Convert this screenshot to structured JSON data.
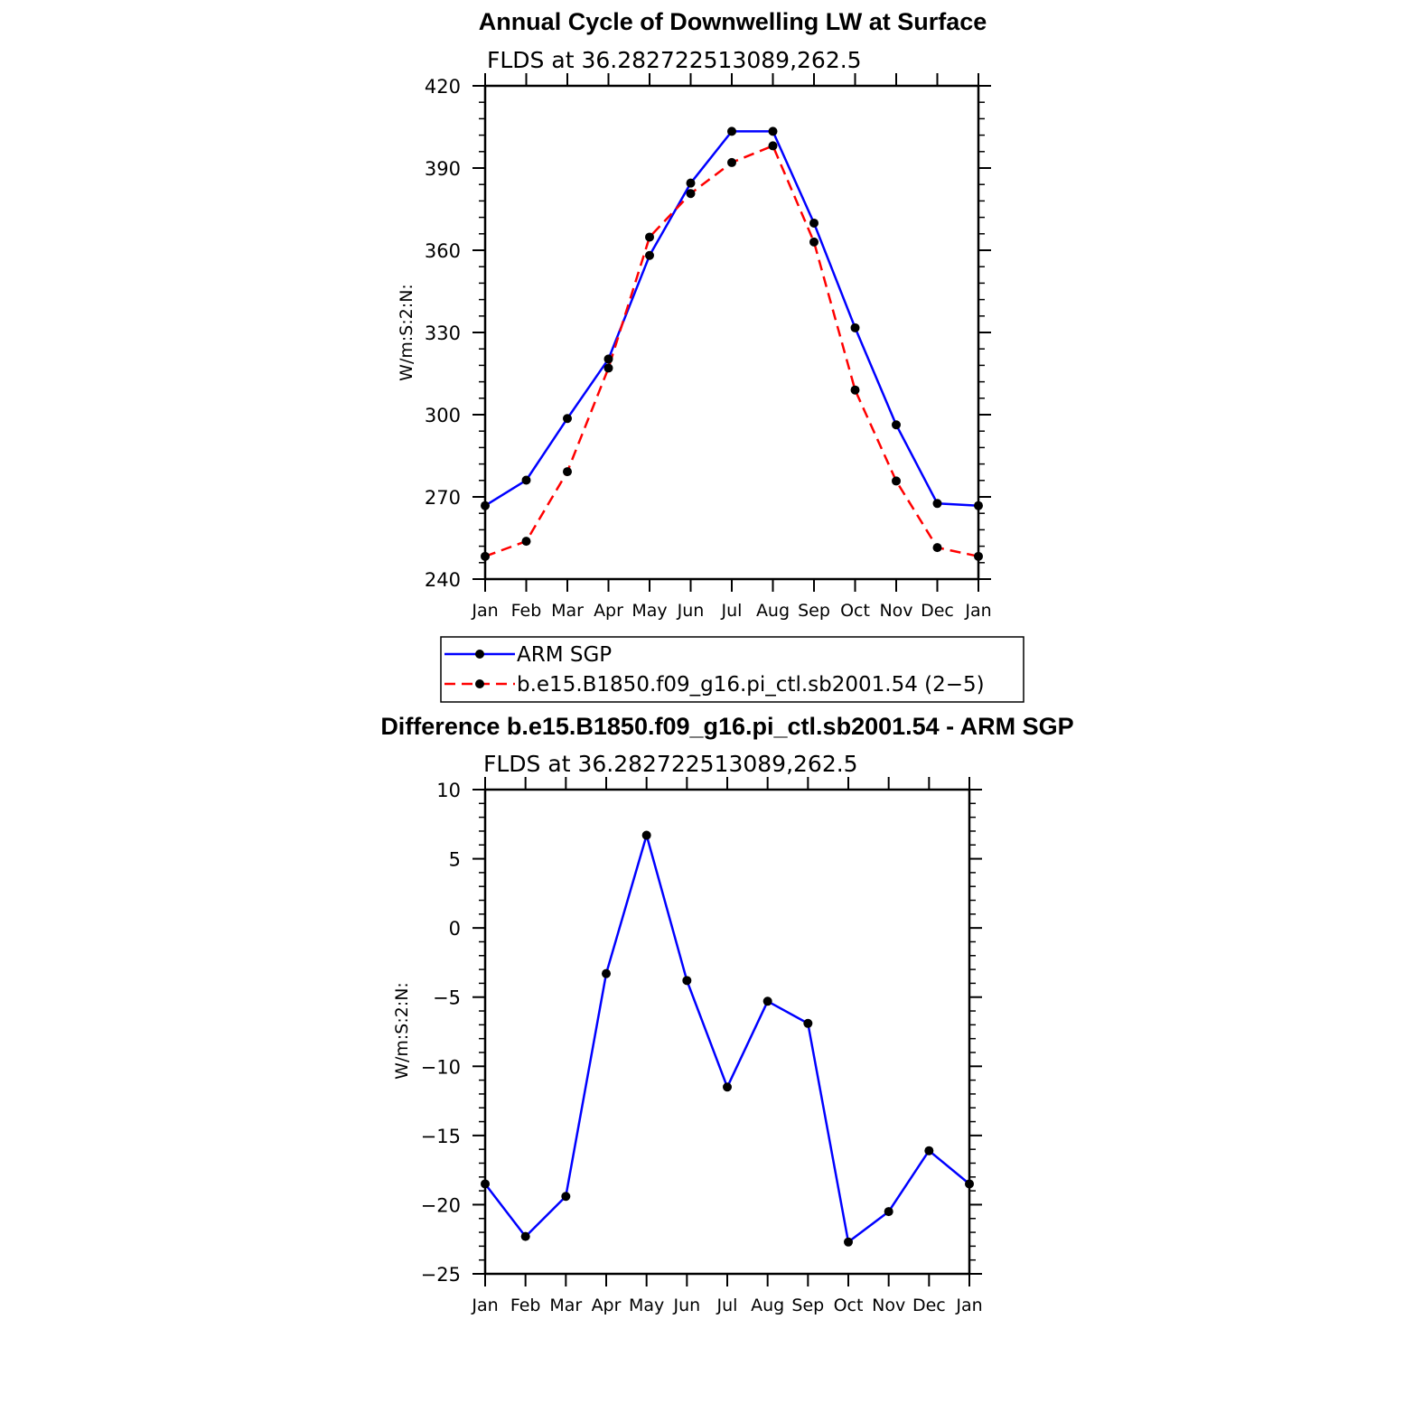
{
  "chart_data": [
    {
      "type": "line",
      "title": "Annual Cycle of Downwelling LW at Surface",
      "subtitle": "FLDS at 36.282722513089,262.5",
      "ylabel": "W/m:S:2:N:",
      "xlabel": "",
      "categories": [
        "Jan",
        "Feb",
        "Mar",
        "Apr",
        "May",
        "Jun",
        "Jul",
        "Aug",
        "Sep",
        "Oct",
        "Nov",
        "Dec",
        "Jan"
      ],
      "ylim": [
        240,
        420
      ],
      "yticks": [
        240,
        270,
        300,
        330,
        360,
        390,
        420
      ],
      "series": [
        {
          "name": "ARM SGP",
          "color": "#0000ff",
          "dash": "solid",
          "values": [
            266.8,
            276.1,
            298.6,
            320.3,
            358.1,
            384.5,
            403.4,
            403.4,
            369.9,
            331.7,
            296.3,
            267.6,
            266.8
          ]
        },
        {
          "name": "b.e15.B1850.f09_g16.pi_ctl.sb2001.54 (2−5)",
          "color": "#ff0000",
          "dash": "dashed",
          "values": [
            248.3,
            253.8,
            279.2,
            317.0,
            364.8,
            380.7,
            392.0,
            398.1,
            363.0,
            309.0,
            275.8,
            251.5,
            248.3
          ]
        }
      ],
      "legend": "below"
    },
    {
      "type": "line",
      "title": "Difference b.e15.B1850.f09_g16.pi_ctl.sb2001.54 - ARM SGP",
      "subtitle": "FLDS at 36.282722513089,262.5",
      "ylabel": "W/m:S:2:N:",
      "xlabel": "",
      "categories": [
        "Jan",
        "Feb",
        "Mar",
        "Apr",
        "May",
        "Jun",
        "Jul",
        "Aug",
        "Sep",
        "Oct",
        "Nov",
        "Dec",
        "Jan"
      ],
      "ylim": [
        -25,
        10
      ],
      "yticks": [
        -25,
        -20,
        -15,
        -10,
        -5,
        0,
        5,
        10
      ],
      "series": [
        {
          "color": "#0000ff",
          "dash": "solid",
          "values": [
            -18.5,
            -22.3,
            -19.4,
            -3.3,
            6.7,
            -3.8,
            -11.5,
            -5.3,
            -6.9,
            -22.7,
            -20.5,
            -16.1,
            -18.5
          ]
        }
      ]
    }
  ]
}
